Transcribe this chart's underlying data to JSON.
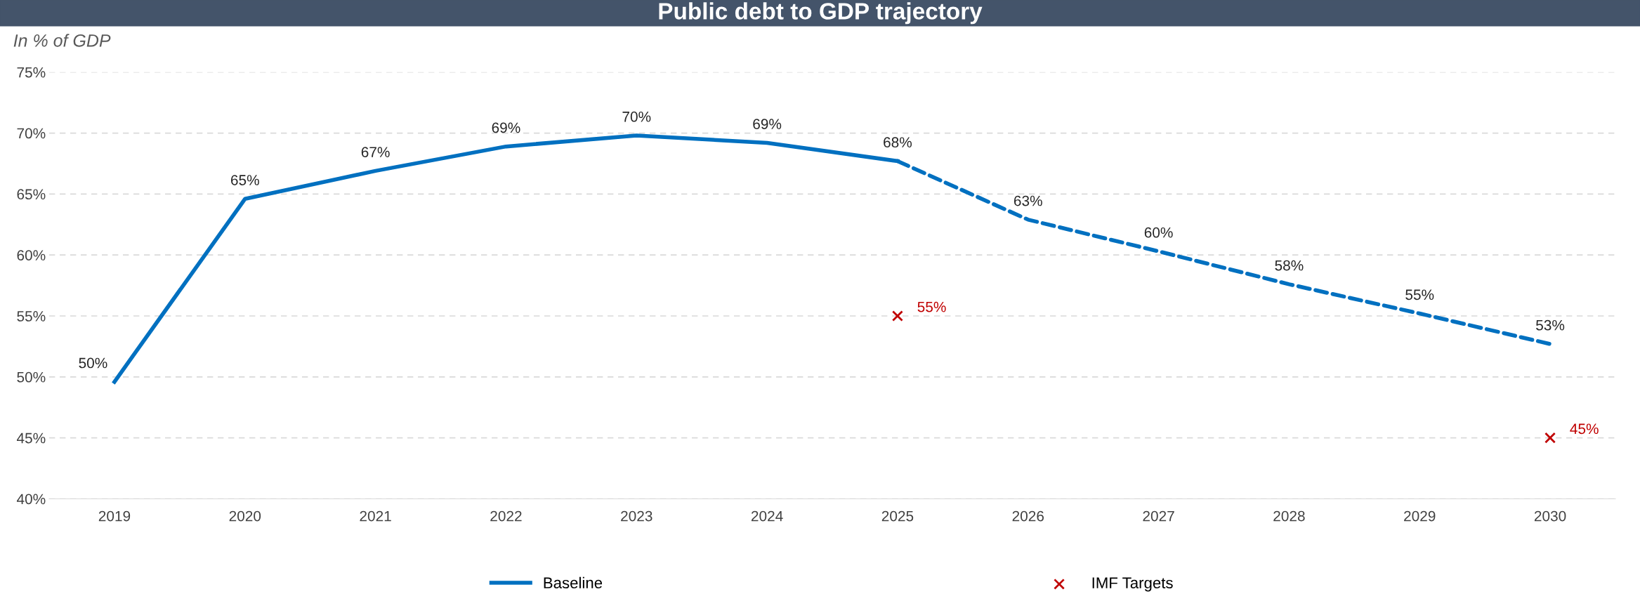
{
  "chart_data": {
    "type": "line",
    "title": "Public debt to GDP trajectory",
    "ylabel": "In % of GDP",
    "categories": [
      "2019",
      "2020",
      "2021",
      "2022",
      "2023",
      "2024",
      "2025",
      "2026",
      "2027",
      "2028",
      "2029",
      "2030"
    ],
    "series": [
      {
        "name": "Baseline",
        "color": "#0070c0",
        "line_style": "solid",
        "values": [
          49.6,
          64.6,
          66.9,
          68.9,
          69.8,
          69.2,
          67.7,
          null,
          null,
          null,
          null,
          null
        ],
        "value_labels": [
          "50%",
          "65%",
          "67%",
          "69%",
          "70%",
          "69%",
          "68%",
          null,
          null,
          null,
          null,
          null
        ]
      },
      {
        "color": "#0070c0",
        "line_style": "dashed",
        "values": [
          null,
          null,
          null,
          null,
          null,
          null,
          67.7,
          62.9,
          60.3,
          57.6,
          55.2,
          52.7
        ],
        "value_labels": [
          null,
          null,
          null,
          null,
          null,
          null,
          null,
          "63%",
          "60%",
          "58%",
          "55%",
          "53%"
        ]
      },
      {
        "name": "IMF Targets",
        "type": "scatter",
        "marker": "cross",
        "color": "#c00000",
        "values": [
          null,
          null,
          null,
          null,
          null,
          null,
          55,
          null,
          null,
          null,
          null,
          45
        ],
        "value_labels": [
          null,
          null,
          null,
          null,
          null,
          null,
          "55%",
          null,
          null,
          null,
          null,
          "45%"
        ]
      }
    ],
    "ylim": [
      40,
      75
    ],
    "yticks": [
      {
        "value": 40,
        "label": "40%"
      },
      {
        "value": 45,
        "label": "45%"
      },
      {
        "value": 50,
        "label": "50%"
      },
      {
        "value": 55,
        "label": "55%"
      },
      {
        "value": 60,
        "label": "60%"
      },
      {
        "value": 65,
        "label": "65%"
      },
      {
        "value": 70,
        "label": "70%"
      },
      {
        "value": 75,
        "label": "75%"
      }
    ],
    "grid": "y",
    "legend": "bottom"
  }
}
